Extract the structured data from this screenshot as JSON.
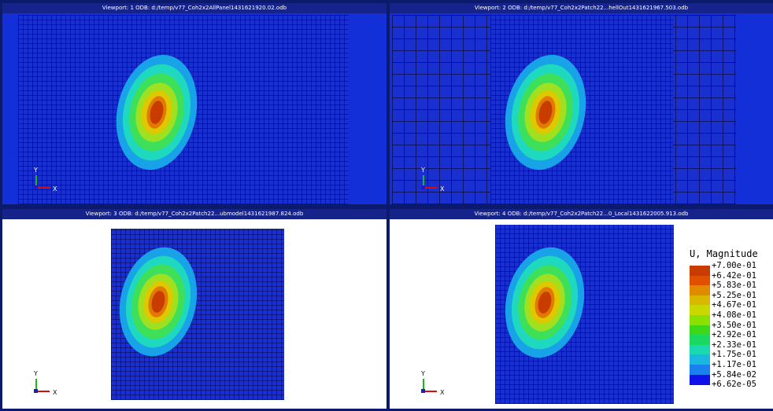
{
  "viewports": [
    {
      "title": "Viewport: 1     ODB: d:/temp/v77_Coh2x2AllPanel1431621920.02.odb"
    },
    {
      "title": "Viewport: 2     ODB: d:/temp/v77_Coh2x2Patch22...hellOut1431621967.503.odb"
    },
    {
      "title": "Viewport: 3     ODB: d:/temp/v77_Coh2x2Patch22...ubmodel1431621987.824.odb"
    },
    {
      "title": "Viewport: 4     ODB: d:/temp/v77_Coh2x2Patch22...0_Local1431622005.913.odb"
    }
  ],
  "triad": {
    "y": "Y",
    "x": "X"
  },
  "legend": {
    "title": "U, Magnitude",
    "entries": [
      {
        "label": "+7.00e-01",
        "color": "#c83c00"
      },
      {
        "label": "+6.42e-01",
        "color": "#e05000"
      },
      {
        "label": "+5.83e-01",
        "color": "#e08a00"
      },
      {
        "label": "+5.25e-01",
        "color": "#d8b800"
      },
      {
        "label": "+4.67e-01",
        "color": "#c8d800"
      },
      {
        "label": "+4.08e-01",
        "color": "#8ce000"
      },
      {
        "label": "+3.50e-01",
        "color": "#3ed81a"
      },
      {
        "label": "+2.92e-01",
        "color": "#1ad860"
      },
      {
        "label": "+2.33e-01",
        "color": "#1ad8b0"
      },
      {
        "label": "+1.75e-01",
        "color": "#1ab8e0"
      },
      {
        "label": "+1.17e-01",
        "color": "#1a80f0"
      },
      {
        "label": "+5.84e-02",
        "color": "#1a40f0"
      },
      {
        "label": "+6.62e-05",
        "color": "#1010e8"
      }
    ]
  }
}
